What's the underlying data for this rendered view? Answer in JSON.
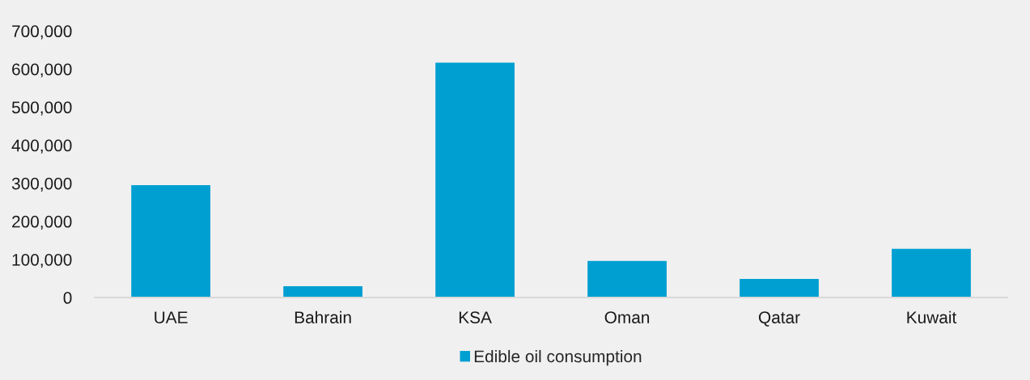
{
  "chart_data": {
    "type": "bar",
    "categories": [
      "UAE",
      "Bahrain",
      "KSA",
      "Oman",
      "Qatar",
      "Kuwait"
    ],
    "series": [
      {
        "name": "Edible oil consumption",
        "color": "#009fd2",
        "values": [
          295000,
          30000,
          617000,
          96000,
          49000,
          128000
        ]
      }
    ],
    "ylim": [
      0,
      700000
    ],
    "yticks": [
      0,
      {
        "value": 100000,
        "label": "100,000"
      },
      {
        "value": 200000,
        "label": "200,000"
      },
      {
        "value": 300000,
        "label": "300,000"
      },
      {
        "value": 400000,
        "label": "400,000"
      },
      {
        "value": 500000,
        "label": "500,000"
      },
      {
        "value": 600000,
        "label": "600,000"
      },
      {
        "value": 700000,
        "label": "700,000"
      }
    ],
    "grid": false,
    "legend": "bottom"
  }
}
